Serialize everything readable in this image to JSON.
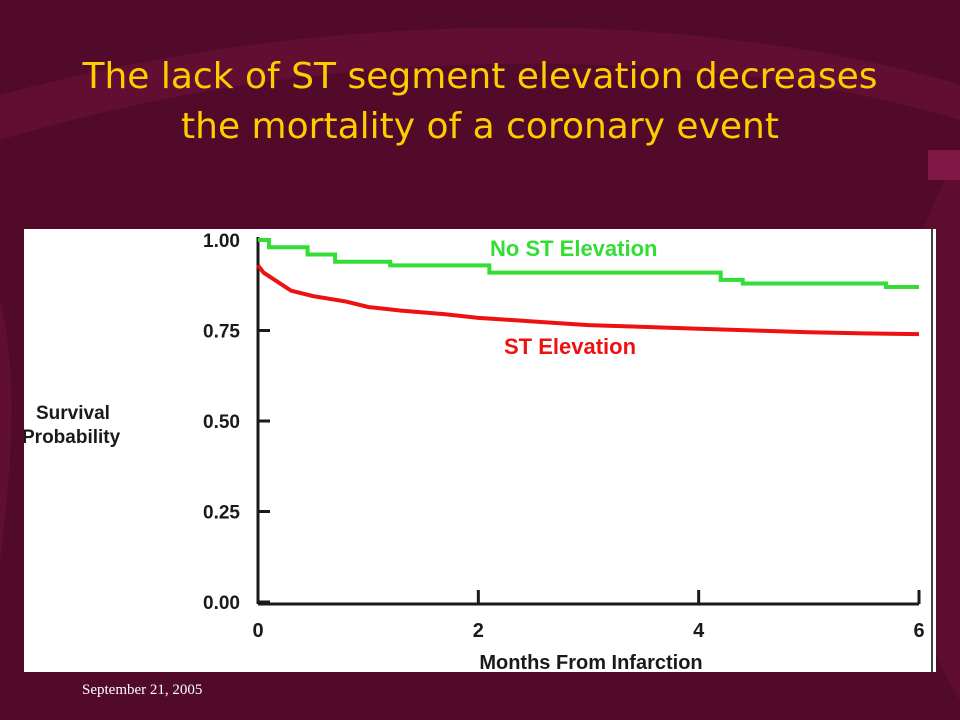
{
  "slide": {
    "title": "The lack of ST segment elevation decreases the mortality of a coronary event",
    "footer_date": "September 21, 2005"
  },
  "colors": {
    "background": "#520a2a",
    "title": "#ffcc00",
    "no_st_series": "#33dd33",
    "st_series": "#ee1111"
  },
  "chart_data": {
    "type": "line",
    "title": "",
    "xlabel": "Months From Infarction",
    "ylabel": "Survival Probability",
    "xlim": [
      0,
      6
    ],
    "ylim": [
      0,
      1
    ],
    "x_ticks": [
      "0",
      "2",
      "4",
      "6"
    ],
    "y_ticks": [
      "0.00",
      "0.25",
      "0.50",
      "0.75",
      "1.00"
    ],
    "grid": false,
    "legend": "inline labels",
    "series": [
      {
        "name": "No ST Elevation",
        "step": true,
        "points": [
          [
            0,
            1.0
          ],
          [
            0.1,
            0.98
          ],
          [
            0.45,
            0.96
          ],
          [
            0.7,
            0.94
          ],
          [
            1.2,
            0.93
          ],
          [
            2.1,
            0.91
          ],
          [
            3.0,
            0.91
          ],
          [
            4.2,
            0.89
          ],
          [
            4.4,
            0.88
          ],
          [
            5.2,
            0.88
          ],
          [
            5.7,
            0.87
          ],
          [
            6.0,
            0.87
          ]
        ]
      },
      {
        "name": "ST Elevation",
        "step": false,
        "points": [
          [
            0,
            0.93
          ],
          [
            0.05,
            0.91
          ],
          [
            0.15,
            0.89
          ],
          [
            0.3,
            0.86
          ],
          [
            0.5,
            0.845
          ],
          [
            0.8,
            0.83
          ],
          [
            1.0,
            0.815
          ],
          [
            1.3,
            0.805
          ],
          [
            1.7,
            0.795
          ],
          [
            2.0,
            0.785
          ],
          [
            2.5,
            0.775
          ],
          [
            3.0,
            0.765
          ],
          [
            3.5,
            0.76
          ],
          [
            4.0,
            0.755
          ],
          [
            4.5,
            0.75
          ],
          [
            5.0,
            0.745
          ],
          [
            5.5,
            0.742
          ],
          [
            6.0,
            0.74
          ]
        ]
      }
    ]
  }
}
